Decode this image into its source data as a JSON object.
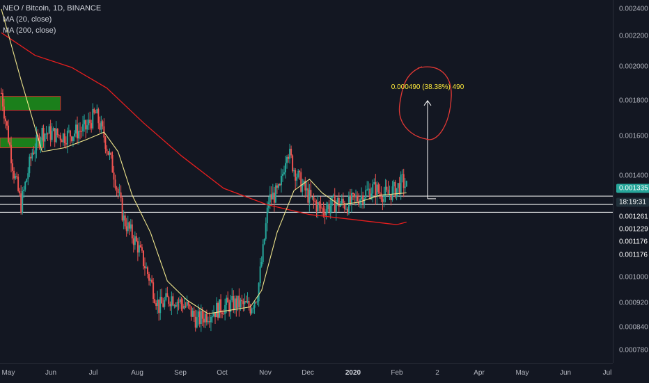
{
  "legend": {
    "symbol": "NEO / Bitcoin, 1D, BINANCE",
    "ma20": "MA (20, close)",
    "ma200": "MA (200, close)"
  },
  "colors": {
    "background": "#131722",
    "up": "#26a69a",
    "down": "#ef5350",
    "ma20": "#f0e68c",
    "ma200": "#e91e1e",
    "zone": "#1b7f1b",
    "zone_border": "#d32f2f",
    "line": "#ffffff",
    "badge_price": "#26a69a",
    "badge_timer": "#20303a",
    "annotation": "#ffeb3b",
    "circle": "#e53935"
  },
  "annotation": {
    "measure_text": "0.000490 (38.38%) 490"
  },
  "y_ticks": [
    "0.002400",
    "0.002200",
    "0.002000",
    "0.001800",
    "0.001600",
    "0.001400",
    "0.001000",
    "0.000920",
    "0.000840",
    "0.000780"
  ],
  "y_badges": {
    "price": "0.001335",
    "timer": "18:19:31",
    "l1": "0.001261",
    "l2": "0.001229",
    "l3": "0.001176",
    "l4": "0.001176"
  },
  "x_ticks": [
    "May",
    "Jun",
    "Jul",
    "Aug",
    "Sep",
    "Oct",
    "Nov",
    "Dec",
    "2020",
    "Feb",
    "2",
    "Apr",
    "May",
    "Jun",
    "Jul"
  ],
  "chart_data": {
    "type": "candlestick",
    "title": "NEO / Bitcoin, 1D, BINANCE",
    "y_scale": "log",
    "ylim": [
      0.00076,
      0.00245
    ],
    "series": [
      {
        "name": "MA (20, close)"
      },
      {
        "name": "MA (200, close)"
      }
    ],
    "close_path": [
      [
        "Apr 26",
        0.00182
      ],
      [
        "May 5",
        0.0014
      ],
      [
        "May 10",
        0.00126
      ],
      [
        "May 18",
        0.0015
      ],
      [
        "May 25",
        0.0016
      ],
      [
        "Jun 10",
        0.00158
      ],
      [
        "Jun 25",
        0.00162
      ],
      [
        "Jul 2",
        0.0017
      ],
      [
        "Jul 8",
        0.00158
      ],
      [
        "Jul 15",
        0.0014
      ],
      [
        "Jul 22",
        0.0012
      ],
      [
        "Aug 1",
        0.0011
      ],
      [
        "Aug 10",
        0.00098
      ],
      [
        "Aug 16",
        0.0009
      ],
      [
        "Aug 25",
        0.00093
      ],
      [
        "Sep 5",
        0.0009
      ],
      [
        "Sep 12",
        0.00086
      ],
      [
        "Sep 20",
        0.00088
      ],
      [
        "Sep 30",
        0.0009
      ],
      [
        "Oct 10",
        0.00091
      ],
      [
        "Oct 20",
        0.0009
      ],
      [
        "Oct 25",
        0.00094
      ],
      [
        "Oct 29",
        0.00108
      ],
      [
        "Nov 2",
        0.00128
      ],
      [
        "Nov 10",
        0.00132
      ],
      [
        "Nov 15",
        0.00152
      ],
      [
        "Nov 20",
        0.00142
      ],
      [
        "Nov 25",
        0.00135
      ],
      [
        "Dec 2",
        0.00128
      ],
      [
        "Dec 10",
        0.00124
      ],
      [
        "Dec 20",
        0.00127
      ],
      [
        "Dec 28",
        0.00126
      ],
      [
        "Jan 5",
        0.00129
      ],
      [
        "Jan 15",
        0.00133
      ],
      [
        "Jan 25",
        0.0013
      ],
      [
        "Feb 1",
        0.00133
      ],
      [
        "Feb 5",
        0.00136
      ],
      [
        "Feb 8",
        0.001335
      ]
    ],
    "ma20_path": [
      [
        "Apr 26",
        0.0024
      ],
      [
        "May 10",
        0.0019
      ],
      [
        "May 25",
        0.0015
      ],
      [
        "Jun 10",
        0.00152
      ],
      [
        "Jun 25",
        0.00156
      ],
      [
        "Jul 8",
        0.0016
      ],
      [
        "Jul 18",
        0.0015
      ],
      [
        "Jul 28",
        0.0013
      ],
      [
        "Aug 10",
        0.00115
      ],
      [
        "Aug 22",
        0.00098
      ],
      [
        "Sep 5",
        0.00092
      ],
      [
        "Sep 20",
        0.00088
      ],
      [
        "Oct 5",
        0.00089
      ],
      [
        "Oct 20",
        0.0009
      ],
      [
        "Oct 28",
        0.00095
      ],
      [
        "Nov 8",
        0.00115
      ],
      [
        "Nov 20",
        0.00132
      ],
      [
        "Dec 1",
        0.00137
      ],
      [
        "Dec 10",
        0.00131
      ],
      [
        "Dec 22",
        0.00126
      ],
      [
        "Jan 5",
        0.00127
      ],
      [
        "Jan 20",
        0.0013
      ],
      [
        "Feb 8",
        0.00131
      ]
    ],
    "ma200_path": [
      [
        "Apr 26",
        0.00222
      ],
      [
        "May 20",
        0.00206
      ],
      [
        "Jun 15",
        0.00198
      ],
      [
        "Jul 10",
        0.00185
      ],
      [
        "Aug 5",
        0.00165
      ],
      [
        "Sep 1",
        0.00148
      ],
      [
        "Oct 1",
        0.00133
      ],
      [
        "Nov 1",
        0.00126
      ],
      [
        "Dec 1",
        0.00122
      ],
      [
        "Jan 1",
        0.0012
      ],
      [
        "Feb 1",
        0.00118
      ],
      [
        "Feb 8",
        0.00119
      ]
    ],
    "resistance_zones": [
      {
        "from": "Apr 26",
        "to": "Jun 7",
        "low": 0.00172,
        "high": 0.0018
      },
      {
        "from": "Apr 26",
        "to": "May 26",
        "low": 0.00152,
        "high": 0.00157
      }
    ],
    "horizontal_lines": [
      0.001296,
      0.001261,
      0.001229
    ],
    "measure": {
      "from": 0.001285,
      "to": 0.001775,
      "text": "0.000490 (38.38%) 490"
    }
  }
}
